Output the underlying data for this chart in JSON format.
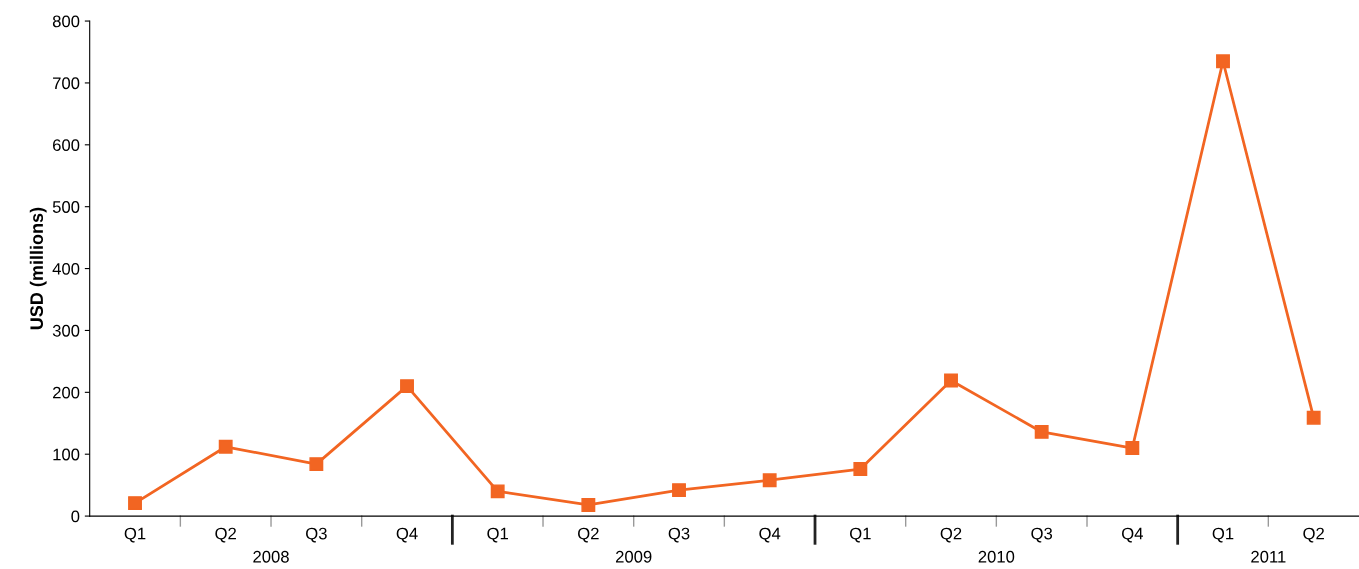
{
  "chart_data": {
    "type": "line",
    "ylabel": "USD (millions)",
    "categories": [
      "Q1",
      "Q2",
      "Q3",
      "Q4",
      "Q1",
      "Q2",
      "Q3",
      "Q4",
      "Q1",
      "Q2",
      "Q3",
      "Q4",
      "Q1",
      "Q2"
    ],
    "series": [
      {
        "color": "#f26522",
        "values": [
          21,
          112,
          84,
          210,
          40,
          18,
          42,
          58,
          76,
          219,
          136,
          110,
          735,
          159
        ]
      }
    ],
    "annotations": [
      "2008",
      "2009",
      "2010",
      "2011"
    ],
    "ylim": [
      0,
      800
    ],
    "yticks": [
      0,
      100,
      200,
      300,
      400,
      500,
      600,
      700,
      800
    ],
    "marker": "square",
    "line_style": "solid",
    "grid": false,
    "legend": false
  }
}
